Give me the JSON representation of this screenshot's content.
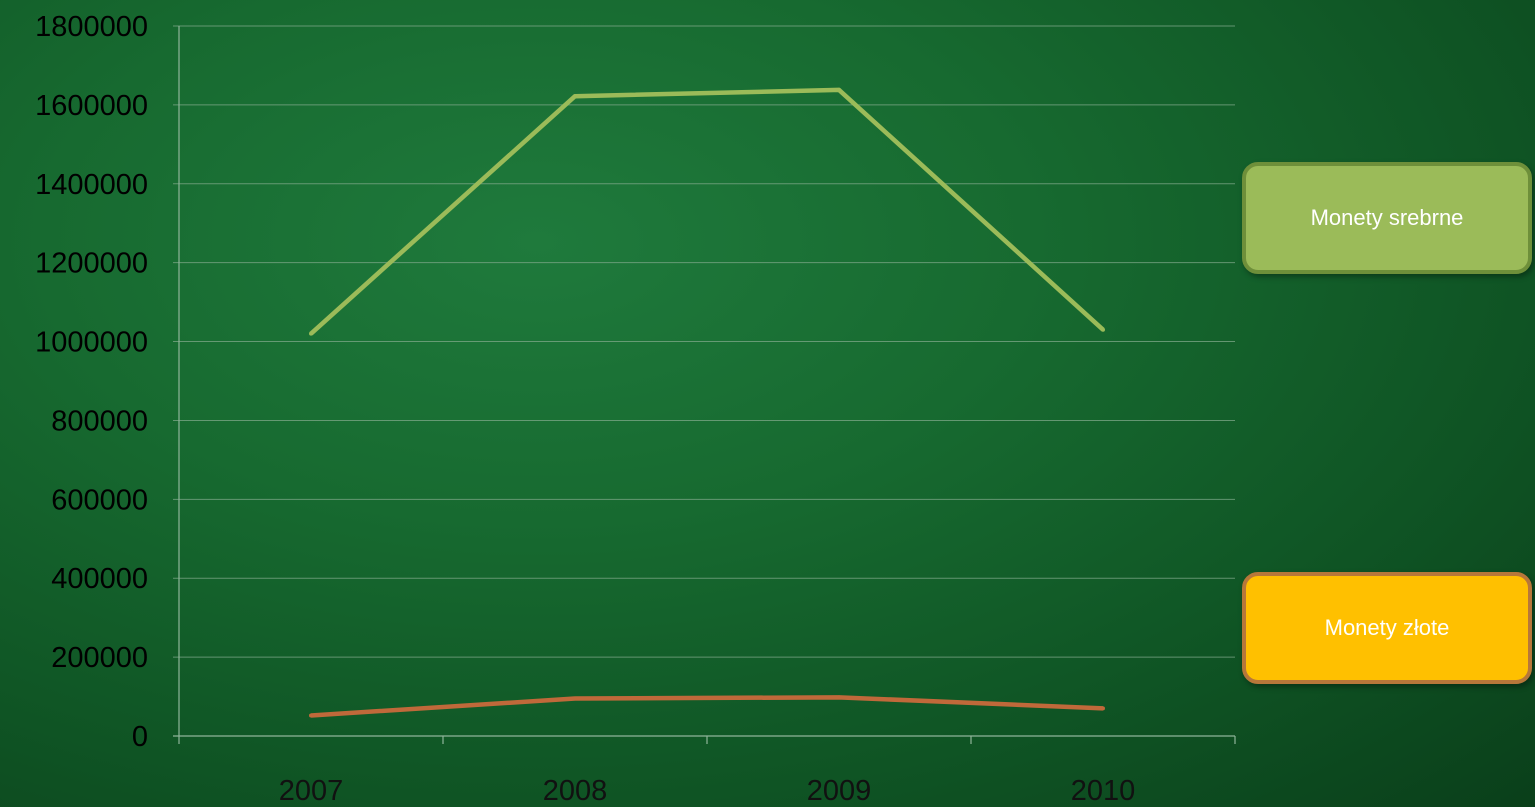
{
  "chart_data": {
    "type": "line",
    "x": [
      "2007",
      "2008",
      "2009",
      "2010"
    ],
    "series": [
      {
        "name": "Monety srebrne",
        "values": [
          1020000,
          1622000,
          1638000,
          1030000
        ],
        "color": "#9bbb59"
      },
      {
        "name": "Monety złote",
        "values": [
          52000,
          95000,
          98000,
          70000
        ],
        "color": "#c0693a"
      }
    ],
    "ylim": [
      0,
      1800000
    ],
    "yticks": [
      "0",
      "200000",
      "400000",
      "600000",
      "800000",
      "1000000",
      "1200000",
      "1400000",
      "1600000",
      "1800000"
    ],
    "grid": true,
    "legend_position": "right"
  }
}
